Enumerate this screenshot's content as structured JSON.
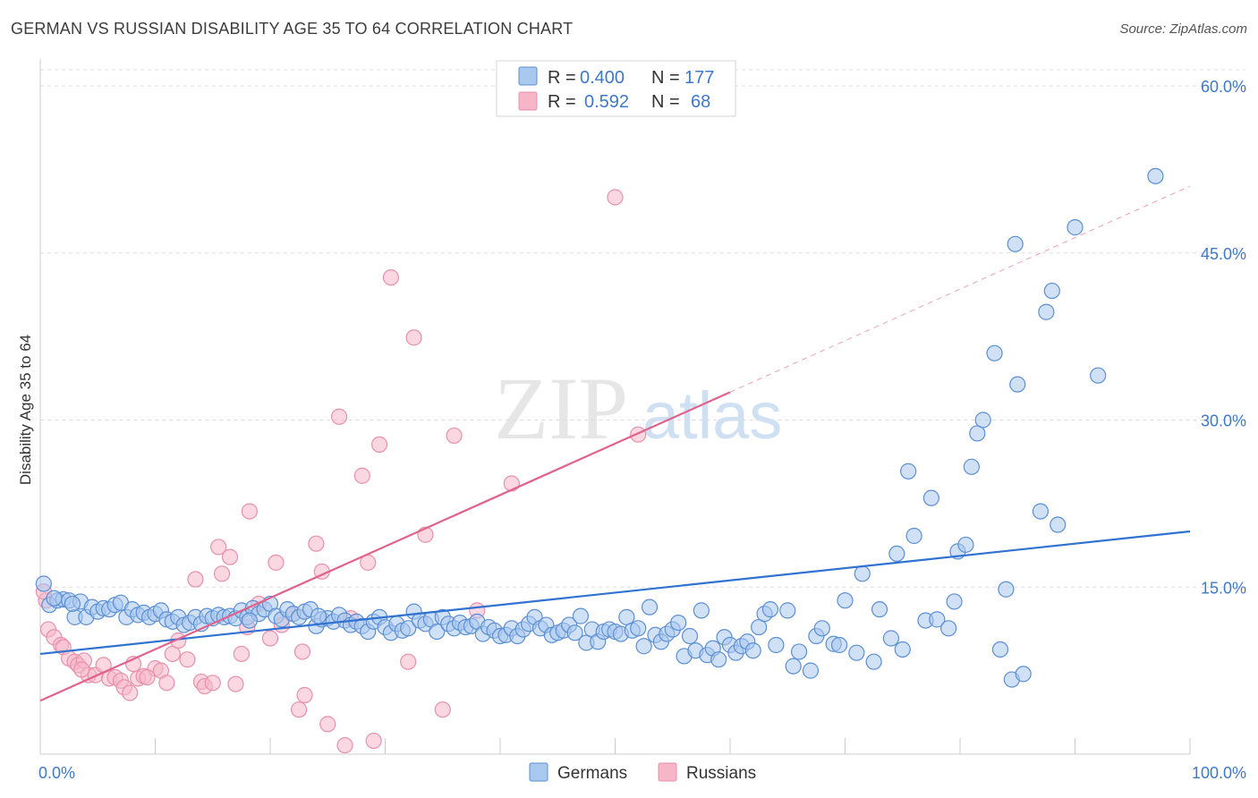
{
  "header": {
    "title": "GERMAN VS RUSSIAN DISABILITY AGE 35 TO 64 CORRELATION CHART",
    "source": "Source: ZipAtlas.com"
  },
  "watermark": {
    "part1": "ZIP",
    "part2": "atlas"
  },
  "stats": {
    "german": {
      "r_label": "R =",
      "r": "0.400",
      "n_label": "N =",
      "n": "177"
    },
    "russian": {
      "r_label": "R =",
      "r": "0.592",
      "n_label": "N =",
      "n": "68"
    }
  },
  "legend": {
    "german": "Germans",
    "russian": "Russians"
  },
  "colors": {
    "german_fill": "#a9c8ee",
    "german_stroke": "#5b8fd4",
    "german_line": "#2f72d1",
    "russian_fill": "#f6b6c8",
    "russian_stroke": "#e890ac",
    "russian_line": "#e0628d",
    "tick_text": "#3e78c8",
    "grid": "#dddddd"
  },
  "chart_data": {
    "type": "scatter",
    "title": "GERMAN VS RUSSIAN DISABILITY AGE 35 TO 64 CORRELATION CHART",
    "xlabel": "",
    "ylabel": "Disability Age 35 to 64",
    "xlim": [
      0,
      100
    ],
    "ylim": [
      0,
      60
    ],
    "x_ticks": [
      "0.0%",
      "100.0%"
    ],
    "y_ticks": [
      {
        "value": 15,
        "label": "15.0%"
      },
      {
        "value": 30,
        "label": "30.0%"
      },
      {
        "value": 45,
        "label": "45.0%"
      },
      {
        "value": 60,
        "label": "60.0%"
      }
    ],
    "grid": true,
    "legend_position": "bottom",
    "series": [
      {
        "name": "Germans",
        "r": 0.4,
        "n": 177,
        "trend": {
          "x": [
            0,
            100
          ],
          "y": [
            9.0,
            20.0
          ]
        },
        "points": [
          [
            0.3,
            15.3
          ],
          [
            0.8,
            13.4
          ],
          [
            1.5,
            13.8
          ],
          [
            2,
            13.9
          ],
          [
            2.5,
            13.8
          ],
          [
            3,
            12.3
          ],
          [
            3.5,
            13.7
          ],
          [
            4,
            12.3
          ],
          [
            4.5,
            13.2
          ],
          [
            5,
            12.8
          ],
          [
            5.5,
            13.1
          ],
          [
            6,
            13.0
          ],
          [
            6.5,
            13.4
          ],
          [
            7,
            13.6
          ],
          [
            7.5,
            12.3
          ],
          [
            8,
            13.0
          ],
          [
            8.5,
            12.5
          ],
          [
            9,
            12.7
          ],
          [
            9.5,
            12.3
          ],
          [
            10,
            12.6
          ],
          [
            10.5,
            12.9
          ],
          [
            11,
            12.1
          ],
          [
            11.5,
            11.9
          ],
          [
            12,
            12.3
          ],
          [
            12.5,
            11.6
          ],
          [
            13,
            11.8
          ],
          [
            13.5,
            12.3
          ],
          [
            14,
            11.7
          ],
          [
            14.5,
            12.4
          ],
          [
            15,
            12.2
          ],
          [
            15.5,
            12.5
          ],
          [
            16,
            12.3
          ],
          [
            16.5,
            12.4
          ],
          [
            17,
            12.2
          ],
          [
            17.5,
            12.9
          ],
          [
            18,
            12.3
          ],
          [
            18.5,
            13.1
          ],
          [
            19,
            12.6
          ],
          [
            19.5,
            13.0
          ],
          [
            20,
            13.5
          ],
          [
            20.5,
            12.4
          ],
          [
            21,
            12.1
          ],
          [
            21.5,
            13.0
          ],
          [
            22,
            12.6
          ],
          [
            22.5,
            12.3
          ],
          [
            23,
            12.8
          ],
          [
            23.5,
            13.0
          ],
          [
            24,
            11.5
          ],
          [
            24.5,
            12.1
          ],
          [
            25,
            12.2
          ],
          [
            25.5,
            11.9
          ],
          [
            26,
            12.5
          ],
          [
            26.5,
            12.0
          ],
          [
            27,
            11.6
          ],
          [
            27.5,
            11.9
          ],
          [
            28,
            11.5
          ],
          [
            28.5,
            11.0
          ],
          [
            29,
            11.9
          ],
          [
            29.5,
            12.3
          ],
          [
            30,
            11.4
          ],
          [
            30.5,
            10.9
          ],
          [
            31,
            11.7
          ],
          [
            31.5,
            11.1
          ],
          [
            32,
            11.3
          ],
          [
            32.5,
            12.8
          ],
          [
            33,
            12.0
          ],
          [
            33.5,
            11.7
          ],
          [
            34,
            12.1
          ],
          [
            34.5,
            11.0
          ],
          [
            35,
            12.3
          ],
          [
            35.5,
            11.7
          ],
          [
            36,
            11.3
          ],
          [
            36.5,
            11.8
          ],
          [
            37,
            11.4
          ],
          [
            37.5,
            11.5
          ],
          [
            38,
            11.9
          ],
          [
            38.5,
            10.8
          ],
          [
            39,
            11.4
          ],
          [
            39.5,
            11.1
          ],
          [
            40,
            10.6
          ],
          [
            40.5,
            10.7
          ],
          [
            41,
            11.3
          ],
          [
            41.5,
            10.6
          ],
          [
            42,
            11.2
          ],
          [
            42.5,
            11.7
          ],
          [
            43,
            12.3
          ],
          [
            43.5,
            11.3
          ],
          [
            44,
            11.6
          ],
          [
            44.5,
            10.7
          ],
          [
            45,
            10.9
          ],
          [
            45.5,
            11.1
          ],
          [
            46,
            11.6
          ],
          [
            46.5,
            10.9
          ],
          [
            47,
            12.4
          ],
          [
            47.5,
            10.0
          ],
          [
            48,
            11.2
          ],
          [
            48.5,
            10.1
          ],
          [
            49,
            11.0
          ],
          [
            49.5,
            11.2
          ],
          [
            50,
            11.0
          ],
          [
            50.5,
            10.8
          ],
          [
            51,
            12.3
          ],
          [
            51.5,
            11.1
          ],
          [
            52,
            11.3
          ],
          [
            52.5,
            9.7
          ],
          [
            53,
            13.2
          ],
          [
            53.5,
            10.7
          ],
          [
            54,
            10.1
          ],
          [
            54.5,
            10.8
          ],
          [
            55,
            11.2
          ],
          [
            55.5,
            11.8
          ],
          [
            56,
            8.8
          ],
          [
            56.5,
            10.6
          ],
          [
            57,
            9.3
          ],
          [
            57.5,
            12.9
          ],
          [
            58,
            8.9
          ],
          [
            58.5,
            9.5
          ],
          [
            59,
            8.5
          ],
          [
            59.5,
            10.5
          ],
          [
            60,
            9.8
          ],
          [
            60.5,
            9.1
          ],
          [
            61,
            9.7
          ],
          [
            61.5,
            10.1
          ],
          [
            62,
            9.3
          ],
          [
            62.5,
            11.4
          ],
          [
            63,
            12.6
          ],
          [
            63.5,
            13.0
          ],
          [
            64,
            9.8
          ],
          [
            65,
            12.9
          ],
          [
            65.5,
            7.9
          ],
          [
            66,
            9.2
          ],
          [
            67,
            7.5
          ],
          [
            67.5,
            10.6
          ],
          [
            68,
            11.3
          ],
          [
            69,
            9.9
          ],
          [
            69.5,
            9.8
          ],
          [
            70,
            13.8
          ],
          [
            71,
            9.1
          ],
          [
            71.5,
            16.2
          ],
          [
            72.5,
            8.3
          ],
          [
            73,
            13.0
          ],
          [
            74,
            10.4
          ],
          [
            74.5,
            18.0
          ],
          [
            75,
            9.4
          ],
          [
            75.5,
            25.4
          ],
          [
            76,
            19.6
          ],
          [
            77,
            12.0
          ],
          [
            77.5,
            23.0
          ],
          [
            78,
            12.1
          ],
          [
            79,
            11.3
          ],
          [
            79.5,
            13.7
          ],
          [
            79.8,
            18.2
          ],
          [
            80.5,
            18.8
          ],
          [
            81,
            25.8
          ],
          [
            81.5,
            28.8
          ],
          [
            82,
            30.0
          ],
          [
            83,
            36.0
          ],
          [
            83.5,
            9.4
          ],
          [
            84,
            14.8
          ],
          [
            84.5,
            6.7
          ],
          [
            84.8,
            45.8
          ],
          [
            85,
            33.2
          ],
          [
            85.5,
            7.2
          ],
          [
            87,
            21.8
          ],
          [
            87.5,
            39.7
          ],
          [
            88,
            41.6
          ],
          [
            88.5,
            20.6
          ],
          [
            90,
            47.3
          ],
          [
            92,
            34.0
          ],
          [
            97,
            51.9
          ],
          [
            1.2,
            14.0
          ],
          [
            2.8,
            13.5
          ],
          [
            18.2,
            12.0
          ],
          [
            24.2,
            12.4
          ]
        ]
      },
      {
        "name": "Russians",
        "r": 0.592,
        "n": 68,
        "trend": {
          "x": [
            0,
            60
          ],
          "y": [
            4.8,
            32.5
          ]
        },
        "trend_extension": {
          "x": [
            60,
            100
          ],
          "y": [
            32.5,
            51.0
          ]
        },
        "points": [
          [
            0.5,
            13.8
          ],
          [
            0.7,
            11.2
          ],
          [
            1.2,
            10.5
          ],
          [
            1.8,
            9.8
          ],
          [
            2,
            9.6
          ],
          [
            2.5,
            8.6
          ],
          [
            3,
            8.3
          ],
          [
            3.3,
            8.0
          ],
          [
            3.8,
            8.4
          ],
          [
            4.2,
            7.1
          ],
          [
            4.8,
            7.1
          ],
          [
            5.5,
            8.0
          ],
          [
            6,
            6.8
          ],
          [
            6.5,
            6.9
          ],
          [
            7,
            6.6
          ],
          [
            7.3,
            6.0
          ],
          [
            7.8,
            5.5
          ],
          [
            8.1,
            8.1
          ],
          [
            8.5,
            6.8
          ],
          [
            9,
            7.0
          ],
          [
            10,
            7.7
          ],
          [
            10.5,
            7.5
          ],
          [
            11,
            6.4
          ],
          [
            11.5,
            9.0
          ],
          [
            12,
            10.2
          ],
          [
            12.8,
            8.5
          ],
          [
            13.5,
            15.7
          ],
          [
            14,
            6.5
          ],
          [
            14.3,
            6.1
          ],
          [
            15,
            6.4
          ],
          [
            15.5,
            18.6
          ],
          [
            15.8,
            16.2
          ],
          [
            16.5,
            17.7
          ],
          [
            17,
            6.3
          ],
          [
            17.5,
            9.0
          ],
          [
            18,
            11.4
          ],
          [
            18.2,
            21.8
          ],
          [
            19,
            13.5
          ],
          [
            20,
            10.4
          ],
          [
            20.5,
            17.2
          ],
          [
            21,
            11.6
          ],
          [
            22,
            12.6
          ],
          [
            22.5,
            4.0
          ],
          [
            22.8,
            9.2
          ],
          [
            23,
            5.3
          ],
          [
            24,
            18.9
          ],
          [
            24.5,
            16.4
          ],
          [
            25,
            2.7
          ],
          [
            26,
            30.3
          ],
          [
            26.5,
            0.8
          ],
          [
            27,
            12.2
          ],
          [
            28,
            25.0
          ],
          [
            28.5,
            17.2
          ],
          [
            29,
            1.2
          ],
          [
            29.5,
            27.8
          ],
          [
            30.5,
            42.8
          ],
          [
            32,
            8.3
          ],
          [
            32.5,
            37.4
          ],
          [
            33.5,
            19.7
          ],
          [
            35,
            4.0
          ],
          [
            36,
            28.6
          ],
          [
            38,
            12.9
          ],
          [
            41,
            24.3
          ],
          [
            50,
            50.0
          ],
          [
            52,
            28.7
          ],
          [
            0.3,
            14.6
          ],
          [
            3.6,
            7.6
          ],
          [
            9.3,
            6.9
          ]
        ]
      }
    ]
  }
}
